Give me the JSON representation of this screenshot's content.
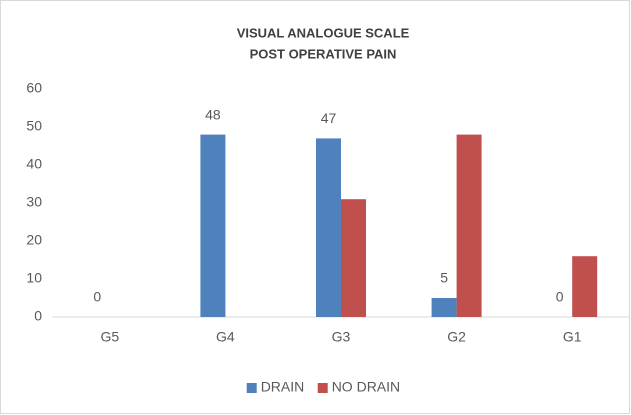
{
  "chart_data": {
    "type": "bar",
    "title": [
      "VISUAL ANALOGUE SCALE",
      "POST OPERATIVE PAIN"
    ],
    "categories": [
      "G5",
      "G4",
      "G3",
      "G2",
      "G1"
    ],
    "series": [
      {
        "name": "DRAIN",
        "color": "#4f81bd",
        "values": [
          0,
          48,
          47,
          5,
          0
        ]
      },
      {
        "name": "NO DRAIN",
        "color": "#c0504d",
        "values": [
          0,
          0,
          31,
          48,
          16
        ]
      }
    ],
    "data_labels_series": [
      0
    ],
    "ylim": [
      0,
      60
    ],
    "yticks": [
      0,
      10,
      20,
      30,
      40,
      50,
      60
    ],
    "grid": false,
    "legend": "bottom"
  }
}
